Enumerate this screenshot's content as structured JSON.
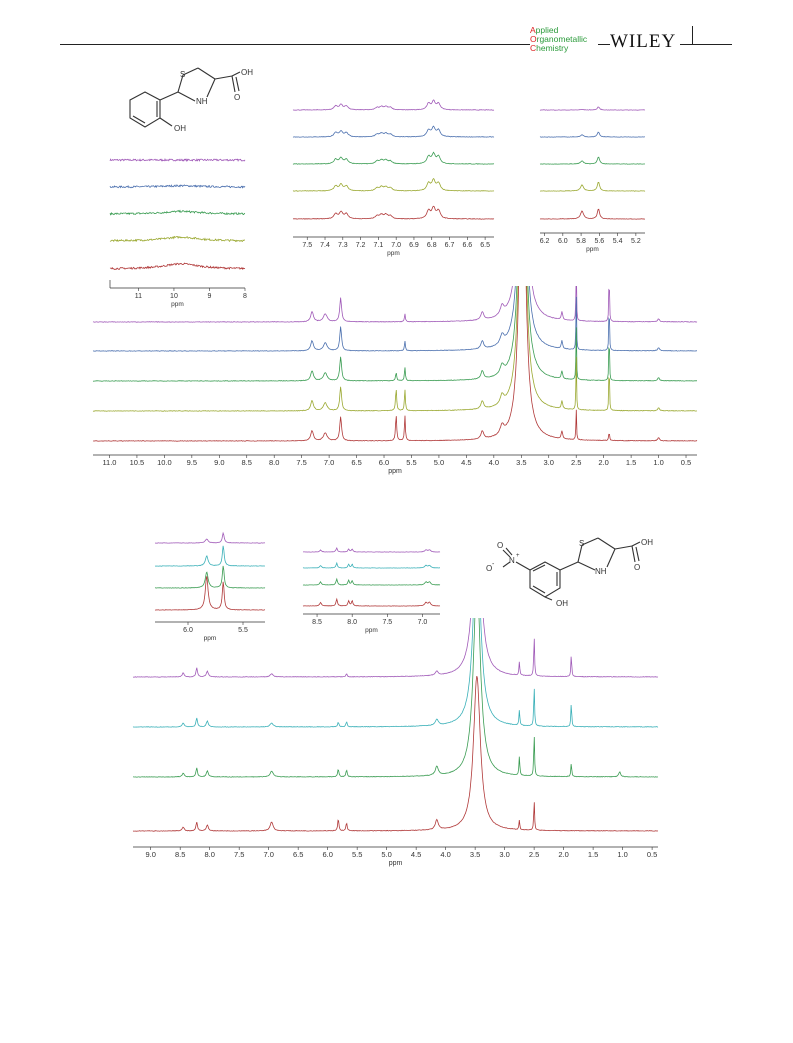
{
  "header": {
    "journal_lines": [
      {
        "initial": "A",
        "rest": "pplied"
      },
      {
        "initial": "O",
        "rest": "rganometallic"
      },
      {
        "initial": "C",
        "rest": "hemistry"
      }
    ],
    "publisher": "WILEY"
  },
  "colors": {
    "purple": "#a05ab8",
    "blue": "#4a6fae",
    "green": "#3a9c52",
    "olive": "#9aa830",
    "red": "#b03838",
    "teal": "#3ab0b8",
    "axis": "#333333"
  },
  "figure1": {
    "structure": {
      "s_label": "S",
      "nh_label": "NH",
      "oh_top": "OH",
      "o_label": "O",
      "oh_bottom": "OH"
    },
    "inset_oh": {
      "tick_labels": [
        "11",
        "10",
        "9",
        "8"
      ],
      "xlabel": "ppm"
    },
    "inset_aromatic": {
      "tick_labels": [
        "7.5",
        "7.4",
        "7.3",
        "7.2",
        "7.1",
        "7.0",
        "6.9",
        "6.8",
        "6.7",
        "6.6",
        "6.5"
      ],
      "xlabel": "ppm"
    },
    "inset_ch": {
      "tick_labels": [
        "6.2",
        "6.0",
        "5.8",
        "5.6",
        "5.4",
        "5.2"
      ],
      "xlabel": "ppm"
    },
    "main": {
      "tick_labels": [
        "11.0",
        "10.5",
        "10.0",
        "9.5",
        "9.0",
        "8.5",
        "8.0",
        "7.5",
        "7.0",
        "6.5",
        "6.0",
        "5.5",
        "5.0",
        "4.5",
        "4.0",
        "3.5",
        "3.0",
        "2.5",
        "2.0",
        "1.5",
        "1.0",
        "0.5"
      ],
      "xlabel": "ppm"
    }
  },
  "figure2": {
    "structure": {
      "s_label": "S",
      "nh_label": "NH",
      "oh_top": "OH",
      "o_label": "O",
      "oh_bottom": "OH",
      "nitro_o": "O",
      "nitro_n": "N",
      "nitro_om": "O",
      "plus": "+",
      "minus": "-"
    },
    "inset_ch": {
      "tick_labels": [
        "6.0",
        "5.5"
      ],
      "xlabel": "ppm"
    },
    "inset_aromatic": {
      "tick_labels": [
        "8.5",
        "8.0",
        "7.5",
        "7.0"
      ],
      "xlabel": "ppm"
    },
    "main": {
      "tick_labels": [
        "9.0",
        "8.5",
        "8.0",
        "7.5",
        "7.0",
        "6.5",
        "6.0",
        "5.5",
        "5.0",
        "4.5",
        "4.0",
        "3.5",
        "3.0",
        "2.5",
        "2.0",
        "1.5",
        "1.0",
        "0.5"
      ],
      "xlabel": "ppm"
    }
  },
  "chart_data": [
    {
      "type": "line",
      "title": "",
      "xlabel": "ppm",
      "ylabel": "",
      "xlim": [
        11.3,
        0.3
      ],
      "x_reversed": true,
      "series": [
        {
          "color": "#a05ab8",
          "peaks_ppm": [
            7.32,
            7.08,
            6.78,
            5.62,
            4.21,
            3.85,
            3.48,
            2.76,
            2.5,
            1.9
          ]
        },
        {
          "color": "#4a6fae",
          "peaks_ppm": [
            7.32,
            7.08,
            6.78,
            5.62,
            4.21,
            3.85,
            3.48,
            2.76,
            2.5,
            1.9
          ]
        },
        {
          "color": "#3a9c52",
          "peaks_ppm": [
            7.32,
            7.08,
            6.78,
            5.75,
            5.62,
            4.21,
            3.85,
            3.48,
            2.76,
            2.5,
            1.9
          ]
        },
        {
          "color": "#9aa830",
          "peaks_ppm": [
            7.32,
            7.08,
            6.78,
            5.8,
            5.62,
            4.21,
            3.85,
            3.48,
            2.76,
            2.5,
            1.9
          ]
        },
        {
          "color": "#b03838",
          "peaks_ppm": [
            7.32,
            7.08,
            6.78,
            5.8,
            5.6,
            4.21,
            3.85,
            3.48,
            2.9,
            2.5,
            1.9
          ]
        }
      ]
    },
    {
      "type": "line",
      "title": "",
      "xlabel": "ppm",
      "ylabel": "",
      "xlim": [
        9.3,
        0.4
      ],
      "x_reversed": true,
      "series": [
        {
          "color": "#a05ab8",
          "peaks_ppm": [
            8.45,
            8.22,
            8.04,
            6.95,
            5.68,
            4.15,
            3.47,
            2.75,
            2.5,
            1.87
          ]
        },
        {
          "color": "#3ab0b8",
          "peaks_ppm": [
            8.45,
            8.22,
            8.04,
            6.95,
            5.82,
            5.68,
            4.15,
            3.47,
            2.75,
            2.5,
            1.87
          ]
        },
        {
          "color": "#3a9c52",
          "peaks_ppm": [
            8.45,
            8.22,
            8.04,
            6.95,
            5.82,
            5.68,
            4.15,
            3.47,
            2.75,
            2.5,
            1.87,
            1.05
          ]
        },
        {
          "color": "#b03838",
          "peaks_ppm": [
            8.45,
            8.22,
            8.04,
            6.95,
            5.82,
            5.68,
            4.15,
            3.47,
            2.95,
            2.75,
            2.5
          ]
        }
      ]
    }
  ]
}
